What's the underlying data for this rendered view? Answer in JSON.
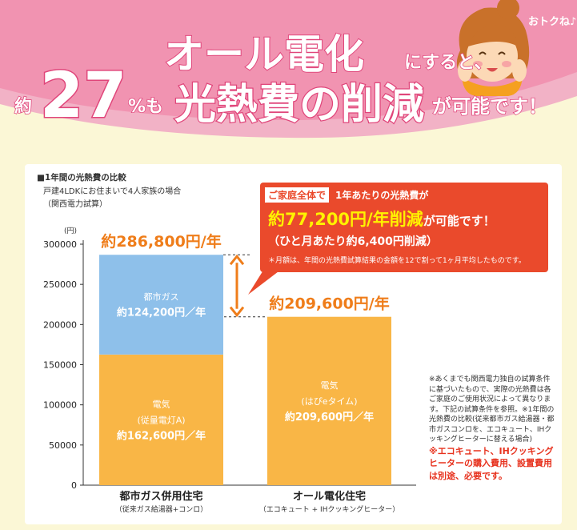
{
  "headline": {
    "line1_main": "オール電化",
    "line1_tail": "にすると、",
    "line2_prefix": "約",
    "line2_number": "27",
    "line2_pct": "%も",
    "line2_main": "光熱費の削減",
    "line2_tail": "が可能です！",
    "character_bubble": "おトクね♪"
  },
  "chart_header": {
    "title": "■1年間の光熱費の比較",
    "subtitle": "戸建4LDKにお住まいで4人家族の場合",
    "source": "（関西電力試算）",
    "unit": "(円)"
  },
  "callout": {
    "tag": "ご家庭全体で",
    "line1": "1年あたりの光熱費が",
    "line2_highlight": "約77,200円/年削減",
    "line2_rest": "が可能です！",
    "line3": "（ひと月あたり約6,400円削減）",
    "line4": "＊月額は、年間の光熱費試算結果の金額を12で割って1ヶ月平均したものです。"
  },
  "notes": {
    "text": "※あくまでも関西電力独自の試算条件に基づいたもので、実際の光熱費は各ご家庭のご使用状況によって異なります。下記の試算条件を参照。※1年間の光熱費の比較(従来都市ガス給湯器・都市ガスコンロを、エコキュート、IHクッキングヒーターに替える場合)",
    "warning": "※エコキュート、IHクッキングヒーターの購入費用、設置費用は別途、必要です。"
  },
  "chart_data": {
    "type": "bar",
    "stacked": true,
    "categories": [
      "都市ガス併用住宅",
      "オール電化住宅"
    ],
    "category_sublabels": [
      "（従来ガス給湯器+コンロ）",
      "（エコキュート + IHクッキングヒーター）"
    ],
    "ylabel": "(円)",
    "ylim": [
      0,
      300000
    ],
    "yticks": [
      0,
      50000,
      100000,
      150000,
      200000,
      250000,
      300000
    ],
    "ytick_labels": [
      "0",
      "50000",
      "100000",
      "150000",
      "200000",
      "250000",
      "300000"
    ],
    "series": [
      {
        "segments": [
          {
            "category": "都市ガス併用住宅",
            "value": 162600,
            "color": "#f9b646",
            "label_lines": [
              "電気",
              "(従量電灯A)",
              "約162,600円／年"
            ]
          },
          {
            "category": "オール電化住宅",
            "value": 209600,
            "color": "#f9b646",
            "label_lines": [
              "電気",
              "(はぴeタイム)",
              "約209,600円／年"
            ]
          }
        ]
      },
      {
        "segments": [
          {
            "category": "都市ガス併用住宅",
            "value": 124200,
            "color": "#8ec0ea",
            "label_lines": [
              "都市ガス",
              "約124,200円／年"
            ]
          }
        ]
      }
    ],
    "totals": [
      {
        "category": "都市ガス併用住宅",
        "value": 286800,
        "label": "約286,800円/年"
      },
      {
        "category": "オール電化住宅",
        "value": 209600,
        "label": "約209,600円/年"
      }
    ],
    "difference_arrow": {
      "from": 286800,
      "to": 209600
    },
    "grid": false
  },
  "colors": {
    "header_pink": "#f2b2c6",
    "accent_pink": "#e0457a",
    "callout_red": "#ea4a2c",
    "total_orange": "#ef7d1a",
    "electric_bar": "#f9b646",
    "gas_bar": "#8ec0ea"
  }
}
